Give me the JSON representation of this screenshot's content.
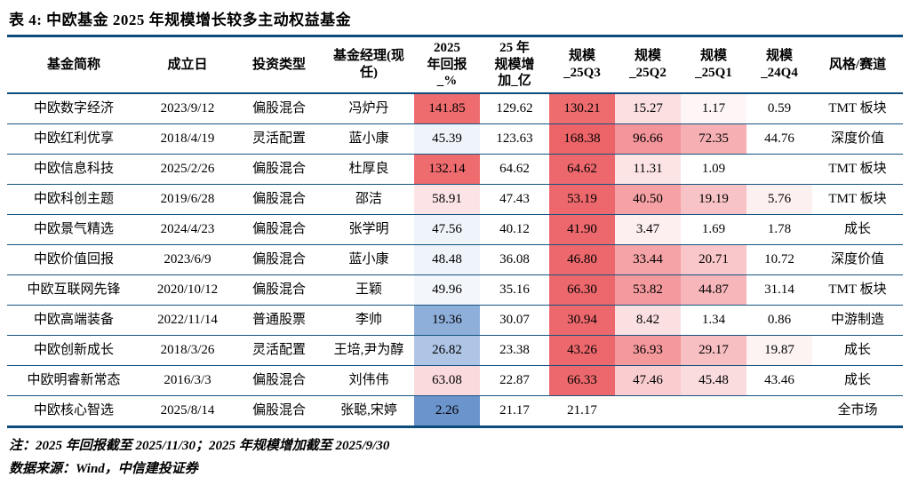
{
  "title": "表 4: 中欧基金 2025 年规模增长较多主动权益基金",
  "table": {
    "columns": [
      "基金简称",
      "成立日",
      "投资类型",
      "基金经理(现\n任)",
      "2025\n年回报\n_%",
      "25 年\n规模增\n加_亿",
      "规模\n_25Q3",
      "规模\n_25Q2",
      "规模\n_25Q1",
      "规模\n_24Q4",
      "风格/赛道"
    ],
    "column_names": [
      "fund-name",
      "established-date",
      "investment-type",
      "fund-manager",
      "return-2025",
      "scale-increase-25",
      "scale-25q3",
      "scale-25q2",
      "scale-25q1",
      "scale-24q4",
      "style-track"
    ],
    "rows": [
      {
        "cells": [
          "中欧数字经济",
          "2023/9/12",
          "偏股混合",
          "冯炉丹",
          "141.85",
          "129.62",
          "130.21",
          "15.27",
          "1.17",
          "0.59",
          "TMT 板块"
        ],
        "bg": [
          "",
          "",
          "",
          "",
          "#ee6b6e",
          "",
          "#ee6b6e",
          "#fbdfe1",
          "#fef6f6",
          "",
          ""
        ]
      },
      {
        "cells": [
          "中欧红利优享",
          "2018/4/19",
          "灵活配置",
          "蓝小康",
          "45.39",
          "123.63",
          "168.38",
          "96.66",
          "72.35",
          "44.76",
          "深度价值"
        ],
        "bg": [
          "",
          "",
          "",
          "",
          "#eff3fa",
          "",
          "#ec6468",
          "#f3949a",
          "#f6b0b4",
          "",
          ""
        ]
      },
      {
        "cells": [
          "中欧信息科技",
          "2025/2/26",
          "偏股混合",
          "杜厚良",
          "132.14",
          "64.62",
          "64.62",
          "11.31",
          "1.09",
          "",
          "TMT 板块"
        ],
        "bg": [
          "",
          "",
          "",
          "",
          "#ee6b6e",
          "",
          "#ed686c",
          "#fce4e5",
          "",
          "",
          ""
        ]
      },
      {
        "cells": [
          "中欧科创主题",
          "2019/6/28",
          "偏股混合",
          "邵洁",
          "58.91",
          "47.43",
          "53.19",
          "40.50",
          "19.19",
          "5.76",
          "TMT 板块"
        ],
        "bg": [
          "",
          "",
          "",
          "",
          "#fce4e6",
          "",
          "#ed686c",
          "#f5a1a5",
          "#f8c3c6",
          "#fdf0f0",
          ""
        ]
      },
      {
        "cells": [
          "中欧景气精选",
          "2024/4/23",
          "偏股混合",
          "张学明",
          "47.56",
          "40.12",
          "41.90",
          "3.47",
          "1.69",
          "1.78",
          "成长"
        ],
        "bg": [
          "",
          "",
          "",
          "",
          "#eff3fa",
          "",
          "#ed686c",
          "#fdeeef",
          "",
          "",
          ""
        ]
      },
      {
        "cells": [
          "中欧价值回报",
          "2023/6/9",
          "偏股混合",
          "蓝小康",
          "48.48",
          "36.08",
          "46.80",
          "33.44",
          "20.71",
          "10.72",
          "深度价值"
        ],
        "bg": [
          "",
          "",
          "",
          "",
          "#eff3fa",
          "",
          "#ed686c",
          "#f5a3a7",
          "#f9c6c9",
          "",
          ""
        ]
      },
      {
        "cells": [
          "中欧互联网先锋",
          "2020/10/12",
          "偏股混合",
          "王颖",
          "49.96",
          "35.16",
          "66.30",
          "53.82",
          "44.87",
          "31.14",
          "TMT 板块"
        ],
        "bg": [
          "",
          "",
          "",
          "",
          "#f3f6fb",
          "",
          "#ed686c",
          "#f4999d",
          "#f7b6ba",
          "",
          ""
        ]
      },
      {
        "cells": [
          "中欧高端装备",
          "2022/11/14",
          "普通股票",
          "李帅",
          "19.36",
          "30.07",
          "30.94",
          "8.42",
          "1.34",
          "0.86",
          "中游制造"
        ],
        "bg": [
          "",
          "",
          "",
          "",
          "#8fafdb",
          "",
          "#ed686c",
          "#fbe0e1",
          "",
          "",
          ""
        ]
      },
      {
        "cells": [
          "中欧创新成长",
          "2018/3/26",
          "灵活配置",
          "王培,尹为醇",
          "26.82",
          "23.38",
          "43.26",
          "36.93",
          "29.17",
          "19.87",
          "成长"
        ],
        "bg": [
          "",
          "",
          "",
          "",
          "#aec5e6",
          "",
          "#ed686c",
          "#f4989c",
          "#f8bfc2",
          "#fdf3f3",
          ""
        ]
      },
      {
        "cells": [
          "中欧明睿新常态",
          "2016/3/3",
          "偏股混合",
          "刘伟伟",
          "63.08",
          "22.87",
          "66.33",
          "47.46",
          "45.48",
          "43.46",
          "成长"
        ],
        "bg": [
          "",
          "",
          "",
          "",
          "#fadadd",
          "",
          "#ed686c",
          "#f9cdd0",
          "#fbdcde",
          "",
          ""
        ]
      },
      {
        "cells": [
          "中欧核心智选",
          "2025/8/14",
          "偏股混合",
          "张聪,宋婷",
          "2.26",
          "21.17",
          "21.17",
          "",
          "",
          "",
          "全市场"
        ],
        "bg": [
          "",
          "",
          "",
          "",
          "#6b94cd",
          "",
          "",
          "",
          "",
          "",
          ""
        ]
      }
    ]
  },
  "notes": {
    "note_line": "注：2025 年回报截至 2025/11/30；2025 年规模增加截至 2025/9/30",
    "source_line": "数据来源：Wind，中信建投证券"
  },
  "colors": {
    "border_thick": "#0e4c7c",
    "border_thin": "#14537f",
    "heat_red_strong": "#ed686c",
    "heat_blue_strong": "#6b94cd"
  }
}
